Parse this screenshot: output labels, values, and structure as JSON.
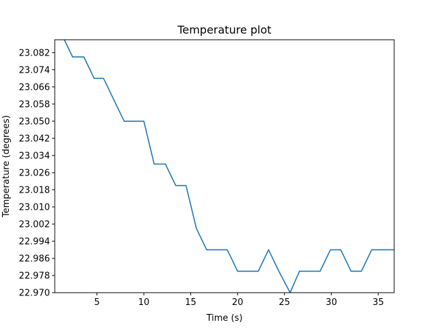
{
  "chart_data": {
    "type": "line",
    "title": "Temperature plot",
    "xlabel": "Time (s)",
    "ylabel": "Temperature (degrees)",
    "xlim": [
      0.5,
      36.7
    ],
    "ylim": [
      22.97,
      23.088
    ],
    "xticks": [
      5,
      10,
      15,
      20,
      25,
      30,
      35
    ],
    "xtick_labels": [
      "5",
      "10",
      "15",
      "20",
      "25",
      "30",
      "35"
    ],
    "yticks": [
      22.97,
      22.978,
      22.986,
      22.994,
      23.002,
      23.01,
      23.018,
      23.026,
      23.034,
      23.042,
      23.05,
      23.058,
      23.066,
      23.074,
      23.082
    ],
    "ytick_labels": [
      "22.970",
      "22.978",
      "22.986",
      "22.994",
      "23.002",
      "23.010",
      "23.018",
      "23.026",
      "23.034",
      "23.042",
      "23.050",
      "23.058",
      "23.066",
      "23.074",
      "23.082"
    ],
    "grid": false,
    "series": [
      {
        "color": "#1f77b4",
        "x": [
          0.5,
          1.3,
          2.4,
          3.6,
          4.7,
          5.7,
          6.8,
          7.9,
          9.0,
          10.0,
          11.1,
          12.3,
          13.4,
          14.5,
          15.6,
          16.7,
          17.8,
          18.9,
          20.0,
          21.1,
          22.2,
          23.3,
          24.4,
          25.6,
          26.6,
          27.7,
          28.8,
          29.9,
          31.0,
          32.1,
          33.2,
          34.3,
          35.4,
          36.7
        ],
        "values": [
          23.09,
          23.09,
          23.08,
          23.08,
          23.07,
          23.07,
          23.06,
          23.05,
          23.05,
          23.05,
          23.03,
          23.03,
          23.02,
          23.02,
          23.0,
          22.99,
          22.99,
          22.99,
          22.98,
          22.98,
          22.98,
          22.99,
          22.98,
          22.97,
          22.98,
          22.98,
          22.98,
          22.99,
          22.99,
          22.98,
          22.98,
          22.99,
          22.99,
          22.99
        ]
      }
    ]
  }
}
